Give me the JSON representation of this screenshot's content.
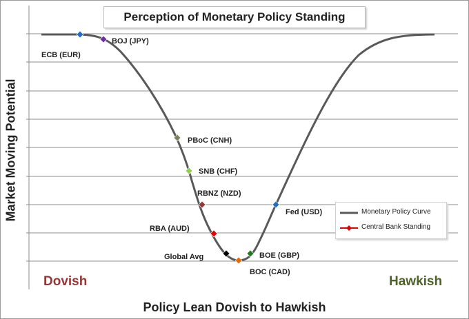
{
  "title": "Perception of Monetary Policy Standing",
  "chart_data": {
    "type": "line",
    "title": "Perception of Monetary Policy Standing",
    "xlabel": "Policy Lean Dovish to Hawkish",
    "ylabel": "Market Moving Potential",
    "x_end_labels": {
      "left": "Dovish",
      "right": "Hawkish"
    },
    "grid": true,
    "legend_position": "right",
    "series": [
      {
        "name": "Monetary Policy Curve",
        "color": "#595959",
        "style": "curve"
      },
      {
        "name": "Central Bank Standing",
        "color": "#e60000",
        "style": "line-with-diamond-marker"
      }
    ],
    "points": [
      {
        "label": "ECB (EUR)",
        "color": "#1f6fc5"
      },
      {
        "label": "BOJ (JPY)",
        "color": "#7030a0"
      },
      {
        "label": "PBoC (CNH)",
        "color": "#7f8060"
      },
      {
        "label": "SNB (CHF)",
        "color": "#92d050"
      },
      {
        "label": "RBNZ (NZD)",
        "color": "#953735"
      },
      {
        "label": "RBA (AUD)",
        "color": "#e60000"
      },
      {
        "label": "Global Avg",
        "color": "#000000"
      },
      {
        "label": "BOC (CAD)",
        "color": "#e36c09"
      },
      {
        "label": "BOE (GBP)",
        "color": "#1e7b1e"
      },
      {
        "label": "Fed (USD)",
        "color": "#1f6fc5"
      }
    ]
  }
}
